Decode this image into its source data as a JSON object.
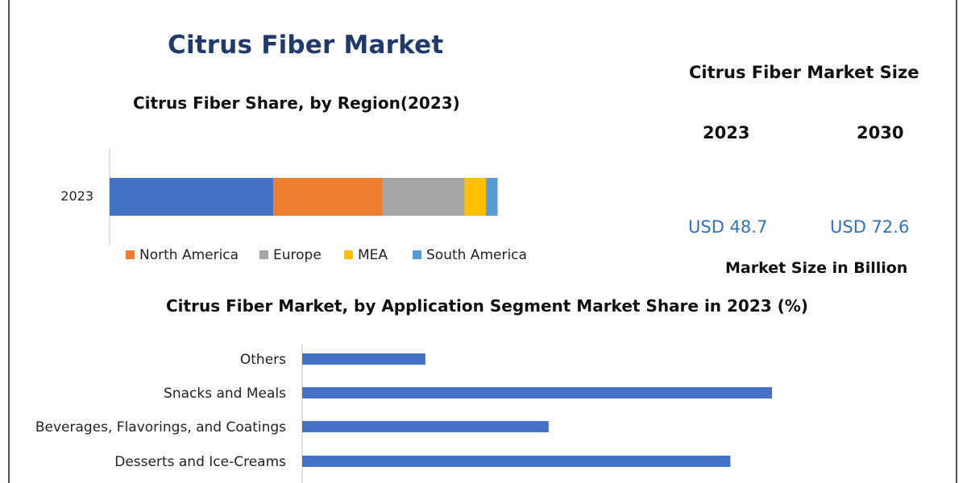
{
  "title": "Citrus Fiber Market",
  "market_size": {
    "title": "Citrus Fiber Market Size",
    "years": [
      "2023",
      "2030"
    ],
    "values": [
      "USD 48.7",
      "USD 72.6"
    ],
    "unit_label": "Market Size in Billion"
  },
  "chart_data": [
    {
      "type": "bar",
      "orientation": "horizontal",
      "stacked": true,
      "title": "Citrus Fiber Share, by Region(2023)",
      "categories": [
        "2023"
      ],
      "series": [
        {
          "name": "",
          "color": "#4472c4",
          "values": [
            42
          ]
        },
        {
          "name": "North America",
          "color": "#ed7d31",
          "values": [
            28
          ]
        },
        {
          "name": "Europe",
          "color": "#a5a5a5",
          "values": [
            21
          ]
        },
        {
          "name": "MEA",
          "color": "#ffc000",
          "values": [
            5.5
          ]
        },
        {
          "name": "South America",
          "color": "#5b9bd5",
          "values": [
            3
          ]
        }
      ],
      "xlim": [
        0,
        100
      ],
      "legend": "bottom",
      "grid": false
    },
    {
      "type": "bar",
      "orientation": "horizontal",
      "title": "Citrus Fiber Market, by Application Segment Market Share in 2023 (%)",
      "categories": [
        "Others",
        "Snacks and Meals",
        "Beverages, Flavorings, and Coatings",
        "Desserts and Ice-Creams"
      ],
      "values": [
        8,
        30.5,
        16,
        27.8
      ],
      "color": "#4472c4",
      "xlim": [
        0,
        35
      ],
      "grid": false
    }
  ]
}
